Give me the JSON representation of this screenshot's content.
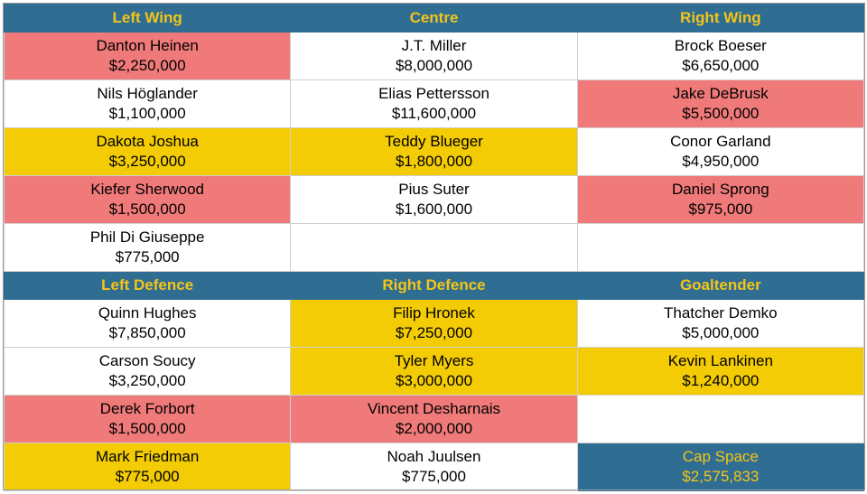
{
  "sections": [
    {
      "headers": [
        "Left Wing",
        "Centre",
        "Right Wing"
      ],
      "rows": [
        [
          {
            "name": "Danton Heinen",
            "amount": "$2,250,000",
            "color": "red"
          },
          {
            "name": "J.T. Miller",
            "amount": "$8,000,000",
            "color": "white"
          },
          {
            "name": "Brock Boeser",
            "amount": "$6,650,000",
            "color": "white"
          }
        ],
        [
          {
            "name": "Nils Höglander",
            "amount": "$1,100,000",
            "color": "white"
          },
          {
            "name": "Elias Pettersson",
            "amount": "$11,600,000",
            "color": "white"
          },
          {
            "name": "Jake DeBrusk",
            "amount": "$5,500,000",
            "color": "red"
          }
        ],
        [
          {
            "name": "Dakota Joshua",
            "amount": "$3,250,000",
            "color": "yellow"
          },
          {
            "name": "Teddy Blueger",
            "amount": "$1,800,000",
            "color": "yellow"
          },
          {
            "name": "Conor Garland",
            "amount": "$4,950,000",
            "color": "white"
          }
        ],
        [
          {
            "name": "Kiefer Sherwood",
            "amount": "$1,500,000",
            "color": "red"
          },
          {
            "name": "Pius Suter",
            "amount": "$1,600,000",
            "color": "white"
          },
          {
            "name": "Daniel Sprong",
            "amount": "$975,000",
            "color": "red"
          }
        ],
        [
          {
            "name": "Phil Di Giuseppe",
            "amount": "$775,000",
            "color": "white"
          },
          {
            "name": "",
            "amount": "",
            "color": "white"
          },
          {
            "name": "",
            "amount": "",
            "color": "white"
          }
        ]
      ]
    },
    {
      "headers": [
        "Left Defence",
        "Right Defence",
        "Goaltender"
      ],
      "rows": [
        [
          {
            "name": "Quinn Hughes",
            "amount": "$7,850,000",
            "color": "white"
          },
          {
            "name": "Filip Hronek",
            "amount": "$7,250,000",
            "color": "yellow"
          },
          {
            "name": "Thatcher Demko",
            "amount": "$5,000,000",
            "color": "white"
          }
        ],
        [
          {
            "name": "Carson Soucy",
            "amount": "$3,250,000",
            "color": "white"
          },
          {
            "name": "Tyler Myers",
            "amount": "$3,000,000",
            "color": "yellow"
          },
          {
            "name": "Kevin Lankinen",
            "amount": "$1,240,000",
            "color": "yellow"
          }
        ],
        [
          {
            "name": "Derek Forbort",
            "amount": "$1,500,000",
            "color": "red"
          },
          {
            "name": "Vincent Desharnais",
            "amount": "$2,000,000",
            "color": "red"
          },
          {
            "name": "",
            "amount": "",
            "color": "white"
          }
        ],
        [
          {
            "name": "Mark Friedman",
            "amount": "$775,000",
            "color": "yellow"
          },
          {
            "name": "Noah Juulsen",
            "amount": "$775,000",
            "color": "white"
          },
          {
            "name": "Cap Space",
            "amount": "$2,575,833",
            "color": "cap"
          }
        ]
      ]
    }
  ],
  "colors": {
    "header_bg": "#2f6d92",
    "header_text": "#f5c518",
    "red": "#f07a7a",
    "yellow": "#f3cc06",
    "white": "#ffffff"
  }
}
